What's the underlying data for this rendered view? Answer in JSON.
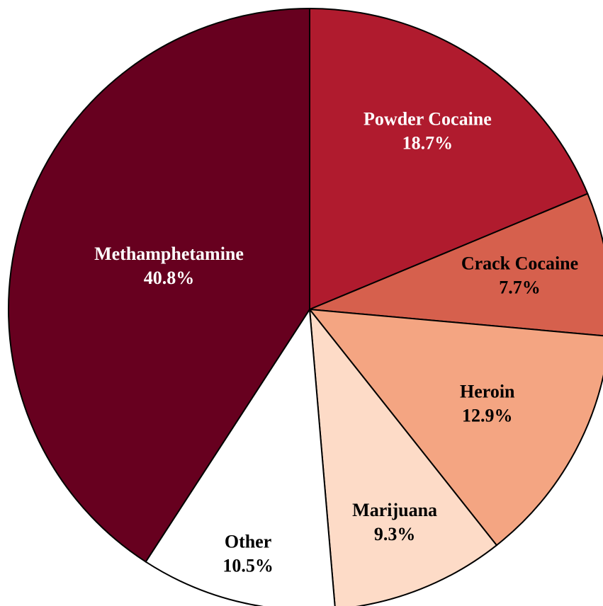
{
  "chart_data": {
    "type": "pie",
    "categories": [
      "Powder Cocaine",
      "Crack Cocaine",
      "Heroin",
      "Marijuana",
      "Other",
      "Methamphetamine"
    ],
    "values": [
      18.7,
      7.7,
      12.9,
      9.3,
      10.5,
      40.8
    ],
    "value_labels": [
      "18.7%",
      "7.7%",
      "12.9%",
      "9.3%",
      "10.5%",
      "40.8%"
    ],
    "colors": [
      "#b01b2e",
      "#d6604d",
      "#f4a582",
      "#fddbc7",
      "#ffffff",
      "#67001f"
    ]
  }
}
